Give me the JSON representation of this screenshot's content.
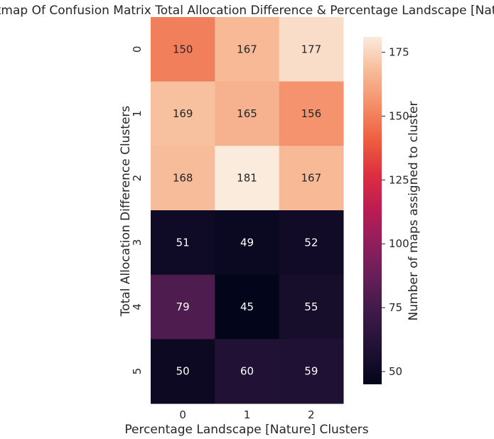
{
  "chart_data": {
    "type": "heatmap",
    "title": "Heatmap Of Confusion Matrix Total Allocation Difference & Percentage Landscape [Nature]",
    "xlabel": "Percentage Landscape [Nature] Clusters",
    "ylabel": "Total Allocation Difference Clusters",
    "x_categories": [
      "0",
      "1",
      "2"
    ],
    "y_categories": [
      "0",
      "1",
      "2",
      "3",
      "4",
      "5"
    ],
    "values": [
      [
        150,
        167,
        177
      ],
      [
        169,
        165,
        156
      ],
      [
        168,
        181,
        167
      ],
      [
        51,
        49,
        52
      ],
      [
        79,
        45,
        55
      ],
      [
        50,
        60,
        59
      ]
    ],
    "colorbar": {
      "label": "Number of maps assigned to cluster",
      "range": [
        45,
        181
      ],
      "ticks": [
        50,
        75,
        100,
        125,
        150,
        175
      ],
      "colormap": "rocket"
    }
  }
}
